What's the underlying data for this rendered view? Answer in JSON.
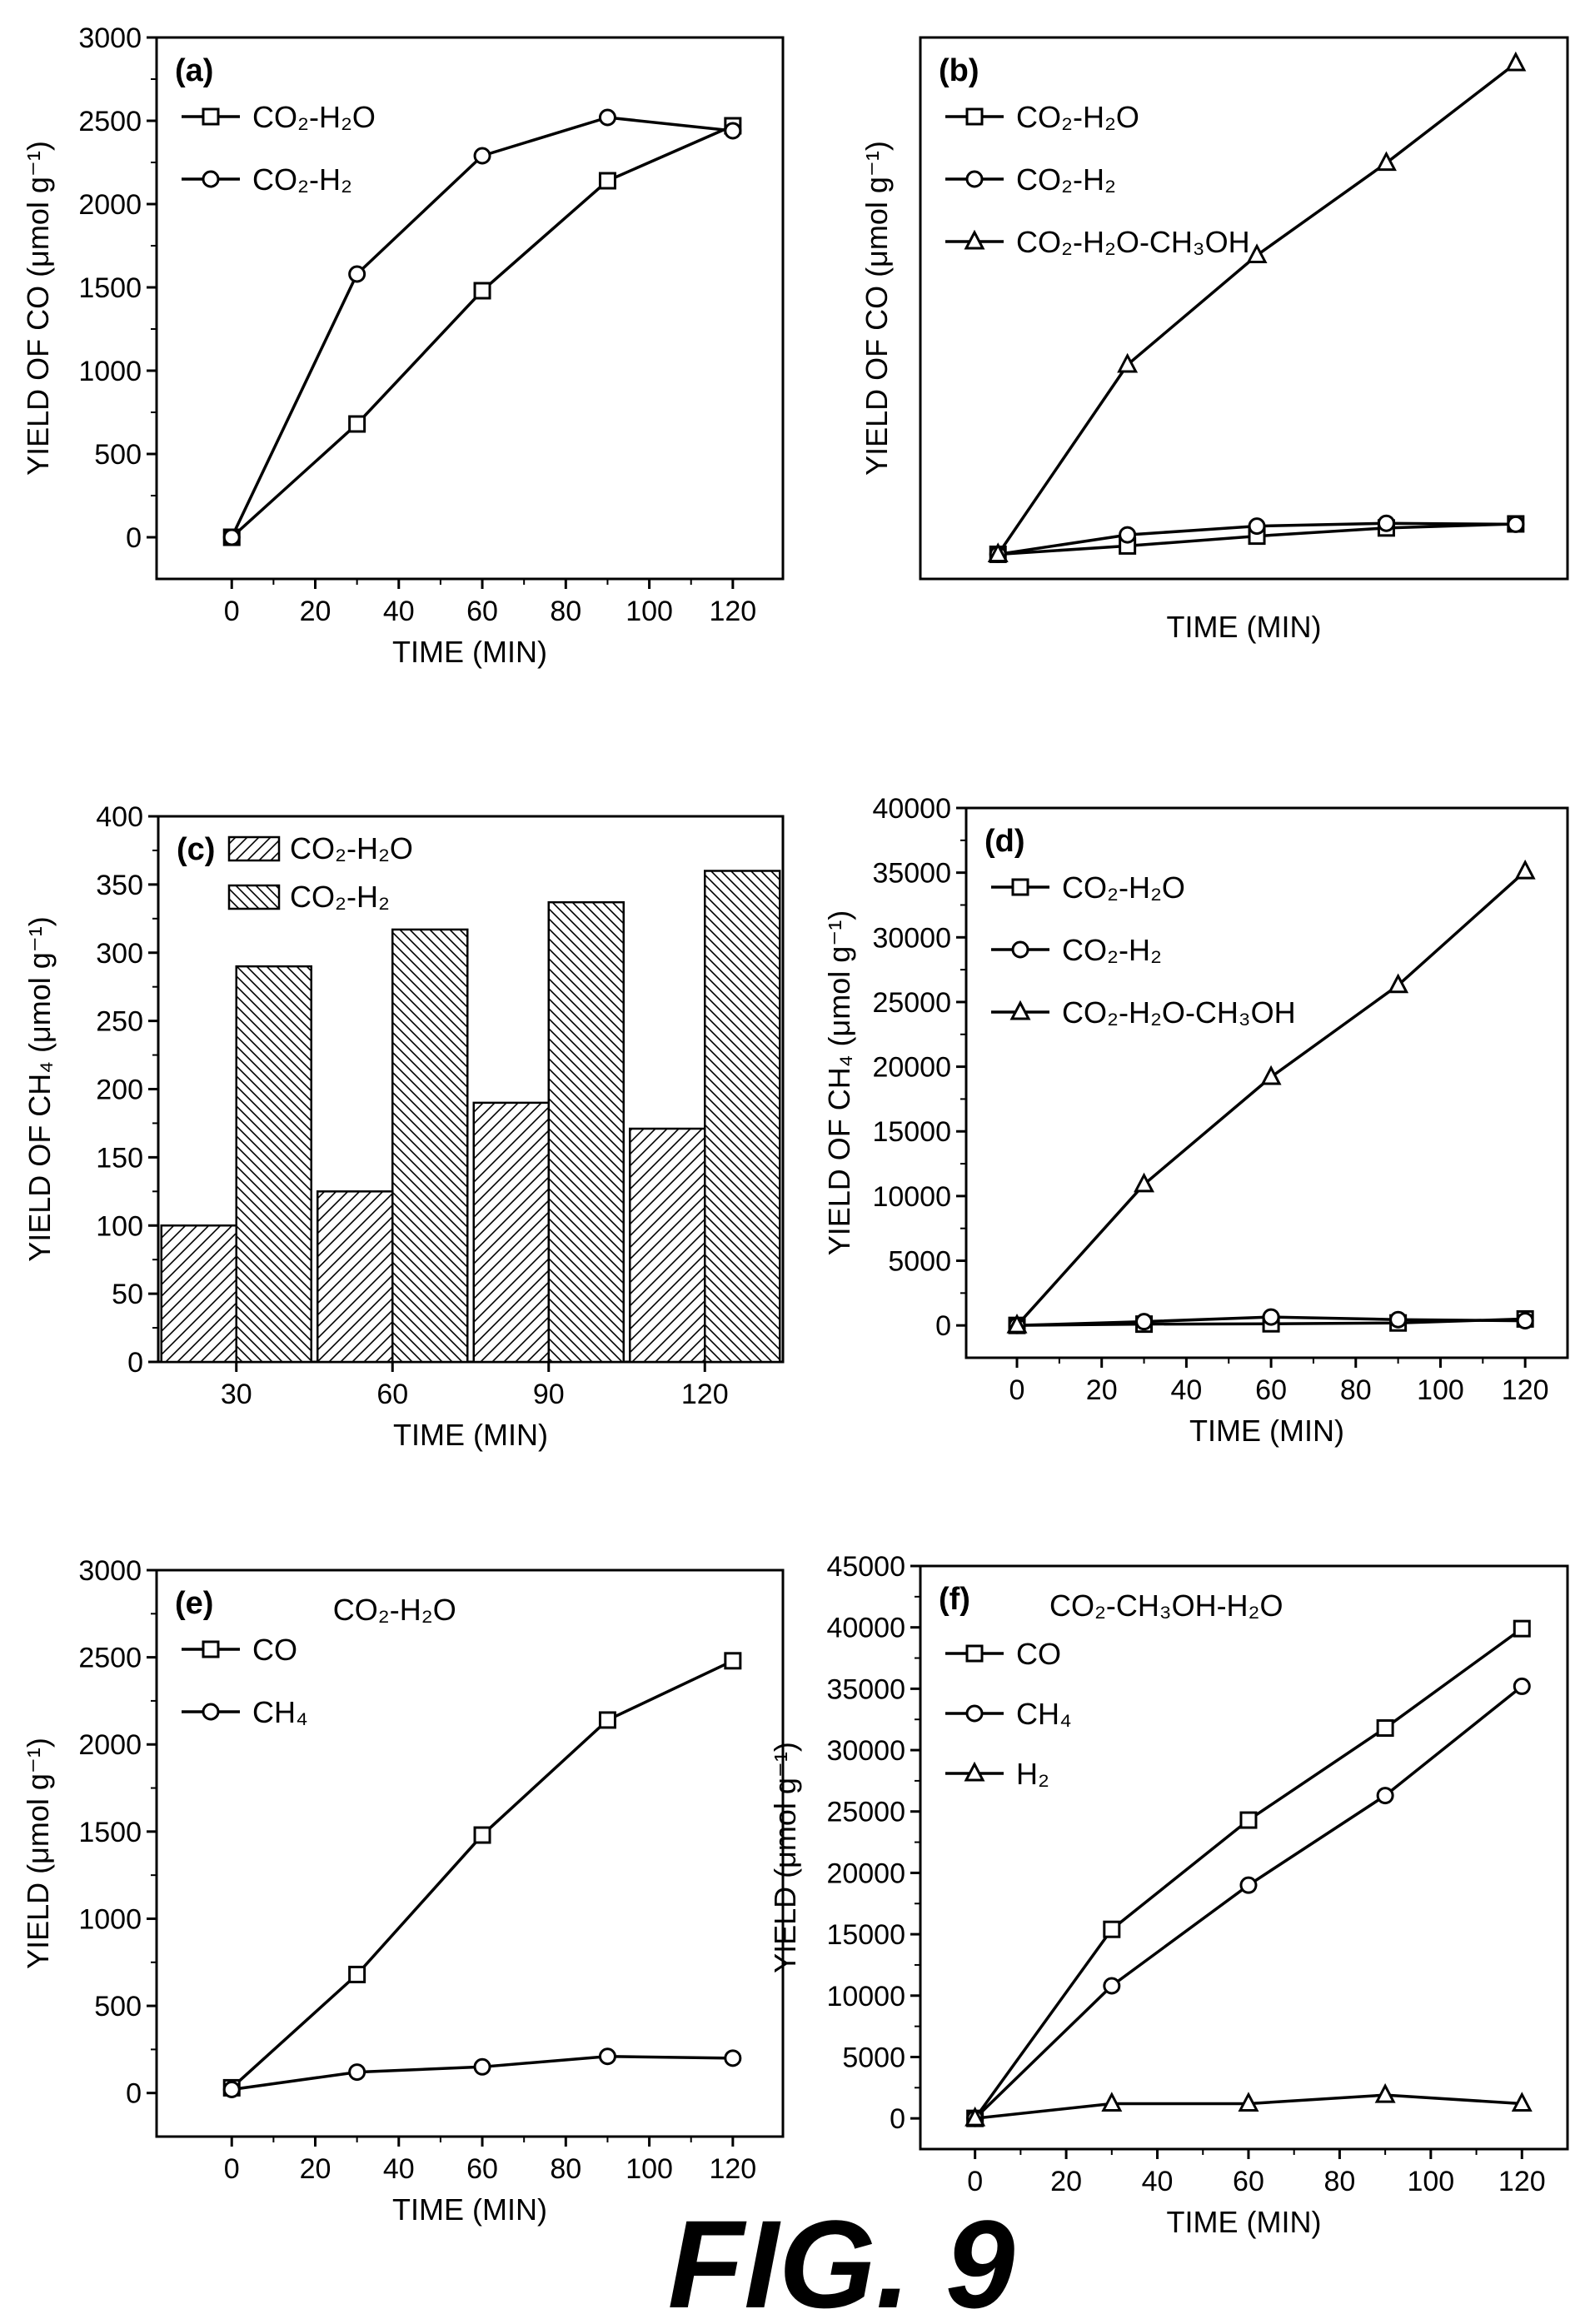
{
  "figure_label": "FIG. 9",
  "colors": {
    "ink": "#000000",
    "background": "#ffffff"
  },
  "chart_data": [
    {
      "panel": "(a)",
      "type": "line",
      "title": "",
      "xlabel": "TIME (MIN)",
      "ylabel": "YIELD OF CO (μmol g⁻¹)",
      "xlim": [
        -18,
        132
      ],
      "ylim": [
        -250,
        3000
      ],
      "xticks": [
        0,
        20,
        40,
        60,
        80,
        100,
        120
      ],
      "yticks": [
        0,
        500,
        1000,
        1500,
        2000,
        2500,
        3000
      ],
      "grid": false,
      "legend": "top-left",
      "series": [
        {
          "name": "CO₂-H₂O",
          "marker": "square",
          "x": [
            0,
            30,
            60,
            90,
            120
          ],
          "y": [
            0,
            680,
            1480,
            2140,
            2470
          ]
        },
        {
          "name": "CO₂-H₂",
          "marker": "circle",
          "x": [
            0,
            30,
            60,
            90,
            120
          ],
          "y": [
            0,
            1580,
            2290,
            2520,
            2440
          ]
        }
      ]
    },
    {
      "panel": "(b)",
      "type": "line",
      "title": "",
      "xlabel": "TIME (MIN)",
      "ylabel": "YIELD OF CO (μmol g⁻¹)",
      "xlim": [
        -18,
        132
      ],
      "ylim": [
        -2000,
        42000
      ],
      "xticks": [],
      "yticks": [],
      "grid": false,
      "legend": "top-left",
      "series": [
        {
          "name": "CO₂-H₂O",
          "marker": "square",
          "x": [
            0,
            30,
            60,
            90,
            120
          ],
          "y": [
            0,
            680,
            1480,
            2140,
            2470
          ]
        },
        {
          "name": "CO₂-H₂",
          "marker": "circle",
          "x": [
            0,
            30,
            60,
            90,
            120
          ],
          "y": [
            0,
            1580,
            2290,
            2520,
            2440
          ]
        },
        {
          "name": "CO₂-H₂O-CH₃OH",
          "marker": "triangle",
          "x": [
            0,
            30,
            60,
            90,
            120
          ],
          "y": [
            0,
            15400,
            24300,
            31800,
            39900
          ]
        }
      ]
    },
    {
      "panel": "(c)",
      "type": "bar",
      "title": "",
      "xlabel": "TIME (MIN)",
      "ylabel": "YIELD OF CH₄ (μmol g⁻¹)",
      "ylim": [
        0,
        400
      ],
      "categories": [
        "30",
        "60",
        "90",
        "120"
      ],
      "yticks": [
        0,
        50,
        100,
        150,
        200,
        250,
        300,
        350,
        400
      ],
      "grid": false,
      "legend": "top-left",
      "series": [
        {
          "name": "CO₂-H₂O",
          "values": [
            100,
            125,
            190,
            171
          ]
        },
        {
          "name": "CO₂-H₂",
          "values": [
            290,
            317,
            337,
            360
          ]
        }
      ]
    },
    {
      "panel": "(d)",
      "type": "line",
      "title": "",
      "xlabel": "TIME (MIN)",
      "ylabel": "YIELD OF CH₄ (μmol g⁻¹)",
      "xlim": [
        -12,
        130
      ],
      "ylim": [
        -2500,
        40000
      ],
      "xticks": [
        0,
        20,
        40,
        60,
        80,
        100,
        120
      ],
      "yticks": [
        0,
        5000,
        10000,
        15000,
        20000,
        25000,
        30000,
        35000,
        40000
      ],
      "grid": false,
      "legend": "top-left",
      "series": [
        {
          "name": "CO₂-H₂O",
          "marker": "square",
          "x": [
            0,
            30,
            60,
            90,
            120
          ],
          "y": [
            0,
            100,
            125,
            190,
            500
          ]
        },
        {
          "name": "CO₂-H₂",
          "marker": "circle",
          "x": [
            0,
            30,
            60,
            90,
            120
          ],
          "y": [
            0,
            290,
            650,
            450,
            360
          ]
        },
        {
          "name": "CO₂-H₂O-CH₃OH",
          "marker": "triangle",
          "x": [
            0,
            30,
            60,
            90,
            120
          ],
          "y": [
            0,
            10900,
            19200,
            26300,
            35100
          ]
        }
      ]
    },
    {
      "panel": "(e)",
      "type": "line",
      "title": "CO₂-H₂O",
      "xlabel": "TIME (MIN)",
      "ylabel": "YIELD (μmol g⁻¹)",
      "xlim": [
        -18,
        132
      ],
      "ylim": [
        -250,
        3000
      ],
      "xticks": [
        0,
        20,
        40,
        60,
        80,
        100,
        120
      ],
      "yticks": [
        0,
        500,
        1000,
        1500,
        2000,
        2500,
        3000
      ],
      "grid": false,
      "legend": "top-left",
      "series": [
        {
          "name": "CO",
          "marker": "square",
          "x": [
            0,
            30,
            60,
            90,
            120
          ],
          "y": [
            30,
            680,
            1480,
            2140,
            2480
          ]
        },
        {
          "name": "CH₄",
          "marker": "circle",
          "x": [
            0,
            30,
            60,
            90,
            120
          ],
          "y": [
            20,
            120,
            150,
            210,
            200
          ]
        }
      ]
    },
    {
      "panel": "(f)",
      "type": "line",
      "title": "CO₂-CH₃OH-H₂O",
      "xlabel": "TIME (MIN)",
      "ylabel": "YIELD (μmol g⁻¹)",
      "xlim": [
        -12,
        130
      ],
      "ylim": [
        -2500,
        45000
      ],
      "xticks": [
        0,
        20,
        40,
        60,
        80,
        100,
        120
      ],
      "yticks": [
        0,
        5000,
        10000,
        15000,
        20000,
        25000,
        30000,
        35000,
        40000,
        45000
      ],
      "grid": false,
      "legend": "top-left",
      "series": [
        {
          "name": "CO",
          "marker": "square",
          "x": [
            0,
            30,
            60,
            90,
            120
          ],
          "y": [
            0,
            15400,
            24300,
            31800,
            39900
          ]
        },
        {
          "name": "CH₄",
          "marker": "circle",
          "x": [
            0,
            30,
            60,
            90,
            120
          ],
          "y": [
            0,
            10800,
            19000,
            26300,
            35200
          ]
        },
        {
          "name": "H₂",
          "marker": "triangle",
          "x": [
            0,
            30,
            60,
            90,
            120
          ],
          "y": [
            0,
            1200,
            1200,
            1900,
            1200
          ]
        }
      ]
    }
  ]
}
